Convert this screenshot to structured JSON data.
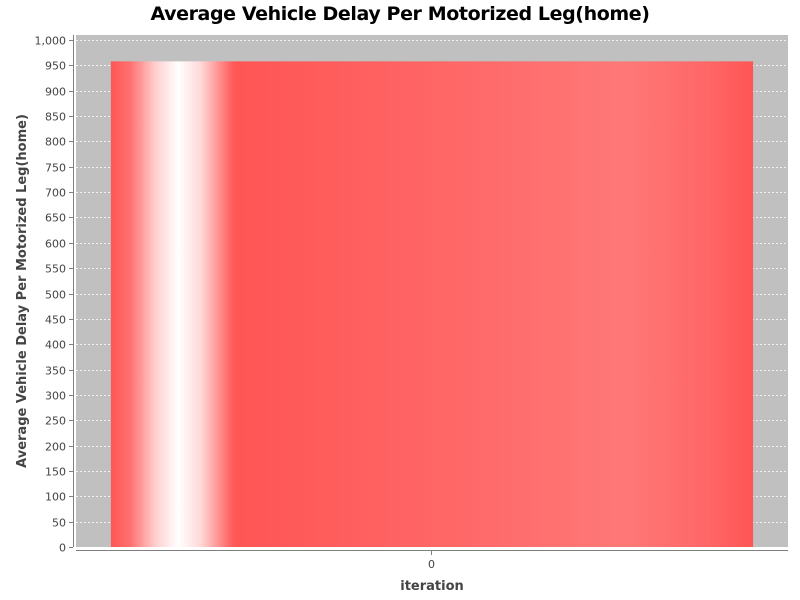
{
  "chart_data": {
    "type": "bar",
    "title": "Average Vehicle Delay Per Motorized Leg(home)",
    "xlabel": "iteration",
    "ylabel": "Average Vehicle Delay Per Motorized Leg(home)",
    "categories": [
      "0"
    ],
    "values": [
      958
    ],
    "ylim": [
      0,
      1010
    ],
    "yticks": [
      "0",
      "50",
      "100",
      "150",
      "200",
      "250",
      "300",
      "350",
      "400",
      "450",
      "500",
      "550",
      "600",
      "650",
      "700",
      "750",
      "800",
      "850",
      "900",
      "950",
      "1,000"
    ],
    "grid": true,
    "legend": "none",
    "colors": {
      "plot_background": "#c0c0c0",
      "bar": "#ff5555",
      "bar_highlight": "#ffffff",
      "gridline": "#ffffff",
      "axis_text": "#444444"
    }
  }
}
